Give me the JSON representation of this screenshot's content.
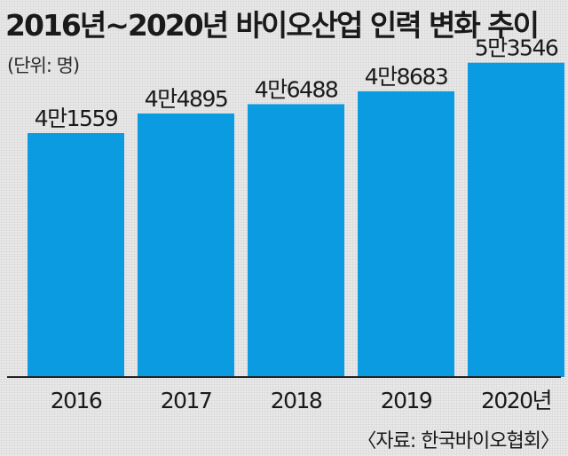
{
  "title": "2016년~2020년 바이오산업 인력 변화 추이",
  "unit_label": "(단위: 명)",
  "source": "〈자료: 한국바이오협회〉",
  "colors": {
    "bar": "#0b9be0",
    "baseline": "#222222"
  },
  "chart_data": {
    "type": "bar",
    "title": "2016년~2020년 바이오산업 인력 변화 추이",
    "ylabel": "(단위: 명)",
    "categories": [
      "2016",
      "2017",
      "2018",
      "2019",
      "2020년"
    ],
    "values": [
      41559,
      44895,
      46488,
      48683,
      53546
    ],
    "data_labels": [
      "4만1559",
      "4만4895",
      "4만6488",
      "4만8683",
      "5만3546"
    ],
    "ylim": [
      0,
      60000
    ],
    "grid": false,
    "legend": "none"
  }
}
